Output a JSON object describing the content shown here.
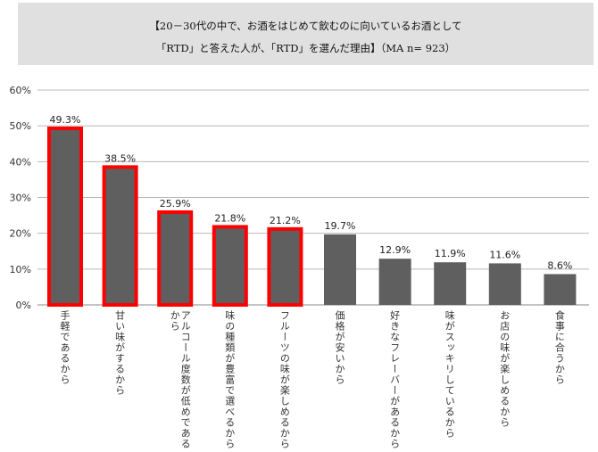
{
  "chart_data": {
    "type": "bar",
    "title_lines": [
      "【20－30代の中で、お酒をはじめて飲むのに向いているお酒として",
      "「RTD」と答えた人が、「RTD」を選んだ理由】（MA n= 923）"
    ],
    "categories": [
      "手軽であるから",
      "甘い味がするから",
      "アルコール度数が低めであるから",
      "味の種類が豊富で選べるから",
      "フルーツの味が楽しめるから",
      "価格が安いから",
      "好きなフレーバーがあるから",
      "味がスッキリしているから",
      "お店の味が楽しめるから",
      "食事に合うから"
    ],
    "values": [
      49.3,
      38.5,
      25.9,
      21.8,
      21.2,
      19.7,
      12.9,
      11.9,
      11.6,
      8.6
    ],
    "data_labels": [
      "49.3%",
      "38.5%",
      "25.9%",
      "21.8%",
      "21.2%",
      "19.7%",
      "12.9%",
      "11.9%",
      "11.6%",
      "8.6%"
    ],
    "highlighted": [
      true,
      true,
      true,
      true,
      true,
      false,
      false,
      false,
      false,
      false
    ],
    "yticks": [
      "0%",
      "10%",
      "20%",
      "30%",
      "40%",
      "50%",
      "60%"
    ],
    "ylim": [
      0,
      60
    ],
    "grid": true,
    "bar_color": "#5f5f5f",
    "highlight_color": "#ff0000"
  }
}
